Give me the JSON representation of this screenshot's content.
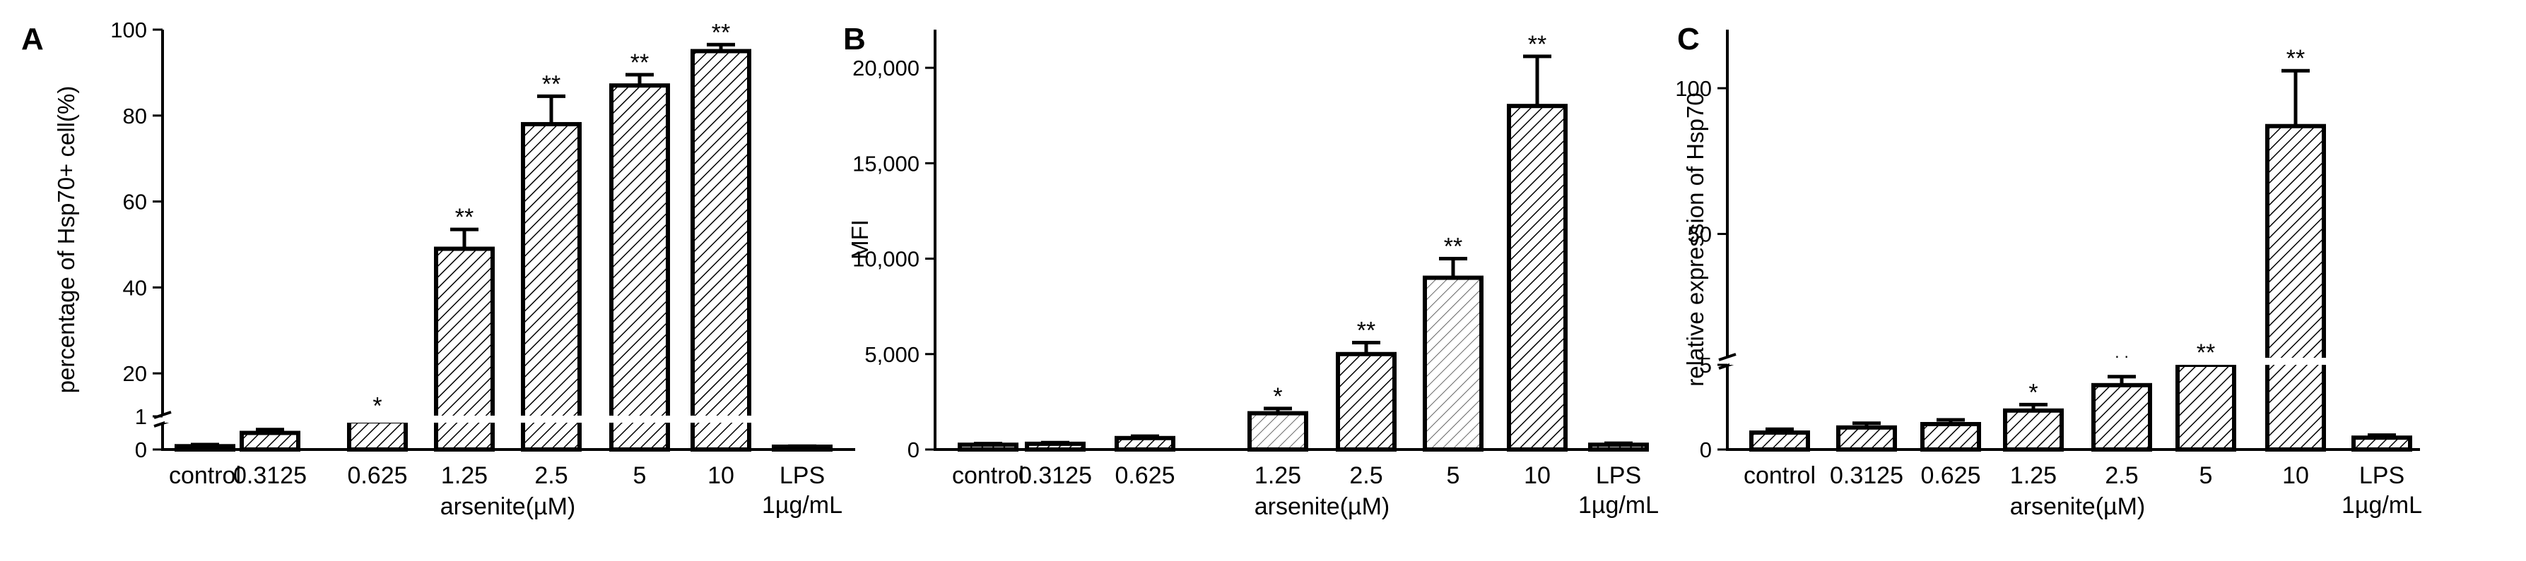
{
  "chart_data": [
    {
      "panel": "A",
      "type": "bar",
      "categories": [
        "control",
        "0.3125",
        "0.625",
        "1.25",
        "2.5",
        "5",
        "10",
        "LPS\n1µg/mL"
      ],
      "values": [
        0.1,
        0.5,
        0.85,
        49,
        78,
        87,
        95,
        0.05
      ],
      "errors": [
        0.05,
        0.1,
        0.1,
        4.5,
        6.5,
        2.5,
        1.5,
        0.05
      ],
      "significance": [
        "",
        "",
        "*",
        "**",
        "**",
        "**",
        "**",
        ""
      ],
      "xlabel": "arsenite(µM)",
      "ylabel": "percentage of Hsp70+ cell(%)",
      "yticks": [
        "0",
        "1",
        "20",
        "40",
        "60",
        "80",
        "100"
      ],
      "ylim": [
        0,
        100
      ],
      "axis_break": [
        1,
        10
      ],
      "title": ""
    },
    {
      "panel": "B",
      "type": "bar",
      "categories": [
        "control",
        "0.3125",
        "0.625",
        "1.25",
        "2.5",
        "5",
        "10",
        "LPS\n1µg/mL"
      ],
      "values": [
        250,
        300,
        600,
        1900,
        5000,
        9000,
        18000,
        250
      ],
      "errors": [
        60,
        60,
        100,
        250,
        600,
        1000,
        2600,
        80
      ],
      "significance": [
        "",
        "",
        "",
        "*",
        "**",
        "**",
        "**",
        ""
      ],
      "xlabel": "arsenite(µM)",
      "ylabel": "MFI",
      "yticks": [
        "0",
        "5,000",
        "10,000",
        "15,000",
        "20,000"
      ],
      "ylim": [
        0,
        22000
      ],
      "title": ""
    },
    {
      "panel": "C",
      "type": "bar",
      "categories": [
        "control",
        "0.3125",
        "0.625",
        "1.25",
        "2.5",
        "5",
        "10",
        "LPS\n1µg/mL"
      ],
      "values": [
        1.0,
        1.3,
        1.5,
        2.3,
        3.8,
        6.5,
        87,
        0.7
      ],
      "errors": [
        0.2,
        0.25,
        0.25,
        0.35,
        0.5,
        0.5,
        19,
        0.15
      ],
      "significance": [
        "",
        "",
        "",
        "*",
        "**",
        "**",
        "**",
        ""
      ],
      "xlabel": "arsenite(µM)",
      "ylabel": "relative expression of Hsp70",
      "yticks": [
        "0",
        "5",
        "50",
        "100"
      ],
      "ylim": [
        0,
        120
      ],
      "axis_break": [
        5.5,
        8
      ],
      "title": ""
    }
  ]
}
